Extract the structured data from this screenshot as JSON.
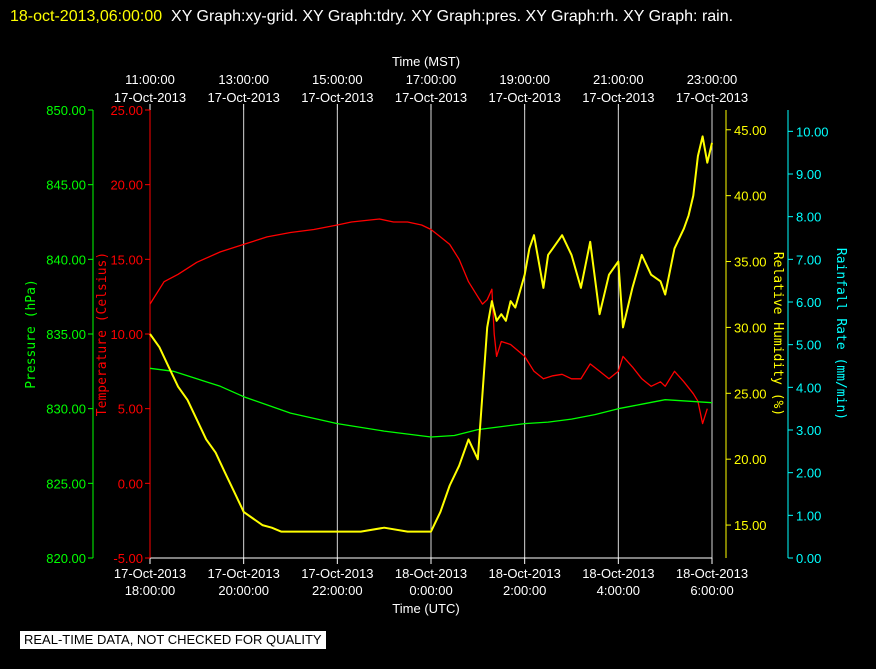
{
  "header": {
    "timestamp": "18-oct-2013,06:00:00",
    "graphs": "XY Graph:xy-grid.  XY Graph:tdry.  XY Graph:pres.  XY Graph:rh.  XY Graph: rain."
  },
  "notice": "REAL-TIME DATA, NOT CHECKED FOR QUALITY",
  "colors": {
    "background": "#000000",
    "grid": "#ffffff",
    "pressure": "#00ff00",
    "temperature": "#ff0000",
    "humidity": "#ffff00",
    "rain": "#00ffff"
  },
  "chart_data": {
    "type": "line",
    "x_unit": "hours (UTC), 17-Oct-2013",
    "xlim": [
      18,
      30
    ],
    "x_axis_bottom": {
      "label": "Time (UTC)",
      "ticks": [
        {
          "x": 18,
          "date": "17-Oct-2013",
          "time": "18:00:00"
        },
        {
          "x": 20,
          "date": "17-Oct-2013",
          "time": "20:00:00"
        },
        {
          "x": 22,
          "date": "17-Oct-2013",
          "time": "22:00:00"
        },
        {
          "x": 24,
          "date": "18-Oct-2013",
          "time": "0:00:00"
        },
        {
          "x": 26,
          "date": "18-Oct-2013",
          "time": "2:00:00"
        },
        {
          "x": 28,
          "date": "18-Oct-2013",
          "time": "4:00:00"
        },
        {
          "x": 30,
          "date": "18-Oct-2013",
          "time": "6:00:00"
        }
      ]
    },
    "x_axis_top": {
      "label": "Time (MST)",
      "ticks": [
        {
          "x": 18,
          "time": "11:00:00",
          "date": "17-Oct-2013"
        },
        {
          "x": 20,
          "time": "13:00:00",
          "date": "17-Oct-2013"
        },
        {
          "x": 22,
          "time": "15:00:00",
          "date": "17-Oct-2013"
        },
        {
          "x": 24,
          "time": "17:00:00",
          "date": "17-Oct-2013"
        },
        {
          "x": 26,
          "time": "19:00:00",
          "date": "17-Oct-2013"
        },
        {
          "x": 28,
          "time": "21:00:00",
          "date": "17-Oct-2013"
        },
        {
          "x": 30,
          "time": "23:00:00",
          "date": "17-Oct-2013"
        }
      ]
    },
    "axes": {
      "pressure": {
        "label": "Pressure (hPa)",
        "ylim": [
          820,
          850
        ],
        "ticks": [
          "820.00",
          "825.00",
          "830.00",
          "835.00",
          "840.00",
          "845.00",
          "850.00"
        ]
      },
      "temperature": {
        "label": "Temperature (Celsius)",
        "ylim": [
          -5,
          25
        ],
        "ticks": [
          "-5.00",
          "0.00",
          "5.00",
          "10.00",
          "15.00",
          "20.00",
          "25.00"
        ]
      },
      "humidity": {
        "label": "Relative Humidity (%)",
        "ylim": [
          12.5,
          46.5
        ],
        "ticks": [
          "15.00",
          "20.00",
          "25.00",
          "30.00",
          "35.00",
          "40.00",
          "45.00"
        ]
      },
      "rain": {
        "label": "Rainfall Rate (mm/min)",
        "ylim": [
          0,
          10.5
        ],
        "ticks": [
          "0.00",
          "1.00",
          "2.00",
          "3.00",
          "4.00",
          "5.00",
          "6.00",
          "7.00",
          "8.00",
          "9.00",
          "10.00"
        ]
      }
    },
    "grid": true,
    "series": [
      {
        "axis": "temperature",
        "x": [
          18.0,
          18.3,
          18.6,
          19.0,
          19.5,
          20.0,
          20.5,
          21.0,
          21.5,
          22.0,
          22.3,
          22.6,
          22.9,
          23.2,
          23.5,
          23.8,
          24.0,
          24.2,
          24.4,
          24.6,
          24.8,
          25.0,
          25.1,
          25.2,
          25.3,
          25.35,
          25.4,
          25.5,
          25.7,
          26.0,
          26.2,
          26.4,
          26.6,
          26.8,
          27.0,
          27.2,
          27.4,
          27.6,
          27.8,
          28.0,
          28.1,
          28.3,
          28.5,
          28.7,
          28.9,
          29.0,
          29.2,
          29.4,
          29.6,
          29.7,
          29.8,
          29.9
        ],
        "values": [
          12.0,
          13.5,
          14.0,
          14.8,
          15.5,
          16.0,
          16.5,
          16.8,
          17.0,
          17.3,
          17.5,
          17.6,
          17.7,
          17.5,
          17.5,
          17.3,
          17.0,
          16.5,
          16.0,
          15.0,
          13.5,
          12.5,
          12.0,
          12.3,
          13.0,
          10.0,
          8.5,
          9.5,
          9.3,
          8.5,
          7.5,
          7.0,
          7.2,
          7.3,
          7.0,
          7.0,
          8.0,
          7.5,
          7.0,
          7.5,
          8.5,
          7.8,
          7.0,
          6.5,
          6.8,
          6.5,
          7.5,
          6.8,
          6.0,
          5.5,
          4.0,
          5.0
        ]
      },
      {
        "axis": "pressure",
        "x": [
          18.0,
          18.5,
          19.0,
          19.5,
          20.0,
          21.0,
          22.0,
          23.0,
          24.0,
          24.5,
          25.0,
          25.5,
          26.0,
          26.5,
          27.0,
          27.5,
          28.0,
          28.5,
          29.0,
          29.5,
          30.0
        ],
        "values": [
          832.7,
          832.5,
          832.0,
          831.5,
          830.8,
          829.7,
          829.0,
          828.5,
          828.1,
          828.2,
          828.6,
          828.8,
          829.0,
          829.1,
          829.3,
          829.6,
          830.0,
          830.3,
          830.6,
          830.5,
          830.4
        ]
      },
      {
        "axis": "humidity",
        "x": [
          18.0,
          18.2,
          18.4,
          18.6,
          18.8,
          19.0,
          19.2,
          19.4,
          19.6,
          19.8,
          20.0,
          20.2,
          20.4,
          20.6,
          20.8,
          21.0,
          21.5,
          22.0,
          22.5,
          23.0,
          23.5,
          24.0,
          24.2,
          24.4,
          24.6,
          24.8,
          25.0,
          25.1,
          25.2,
          25.3,
          25.4,
          25.5,
          25.6,
          25.7,
          25.8,
          26.0,
          26.1,
          26.2,
          26.3,
          26.4,
          26.5,
          26.6,
          26.8,
          27.0,
          27.2,
          27.4,
          27.6,
          27.8,
          28.0,
          28.1,
          28.3,
          28.5,
          28.7,
          28.9,
          29.0,
          29.2,
          29.4,
          29.5,
          29.6,
          29.7,
          29.8,
          29.9,
          30.0
        ],
        "values": [
          29.5,
          28.5,
          27.0,
          25.5,
          24.5,
          23.0,
          21.5,
          20.5,
          19.0,
          17.5,
          16.0,
          15.5,
          15.0,
          14.8,
          14.5,
          14.5,
          14.5,
          14.5,
          14.5,
          14.8,
          14.5,
          14.5,
          16.0,
          18.0,
          19.5,
          21.5,
          20.0,
          25.0,
          30.0,
          32.0,
          30.5,
          31.0,
          30.5,
          32.0,
          31.5,
          34.0,
          36.0,
          37.0,
          35.0,
          33.0,
          35.5,
          36.0,
          37.0,
          35.5,
          33.0,
          36.5,
          31.0,
          34.0,
          35.0,
          30.0,
          33.0,
          35.5,
          34.0,
          33.5,
          32.5,
          36.0,
          37.5,
          38.5,
          40.0,
          43.0,
          44.5,
          42.5,
          44.0
        ]
      },
      {
        "axis": "rain",
        "x": [],
        "values": []
      }
    ]
  }
}
